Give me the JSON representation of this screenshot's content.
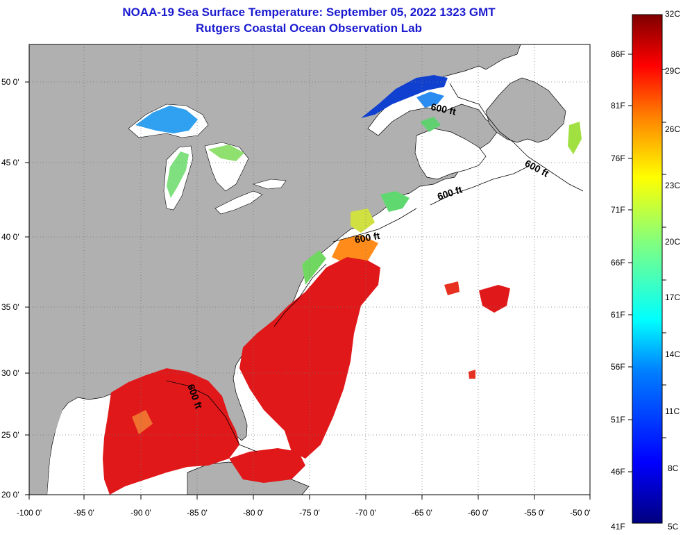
{
  "title": "NOAA-19 Sea Surface Temperature:  September 05, 2022 1323 GMT",
  "subtitle": "Rutgers Coastal Ocean Observation Lab",
  "colors": {
    "land": "#b0b0b0",
    "cloud_or_nodata": "#ffffff",
    "title_text": "#1a1ad0",
    "warm_water": "#e0181a"
  },
  "axes": {
    "lon_ticks": [
      "-100 0'",
      "-95 0'",
      "-90 0'",
      "-85 0'",
      "-80 0'",
      "-75 0'",
      "-70 0'",
      "-65 0'",
      "-60 0'",
      "-55 0'",
      "-50 0'"
    ],
    "lat_ticks": [
      "50 0'",
      "45 0'",
      "40 0'",
      "35 0'",
      "30 0'",
      "25 0'",
      "20 0'"
    ],
    "grid": "dotted"
  },
  "contours": [
    {
      "label": "600 ft"
    },
    {
      "label": "600 ft"
    },
    {
      "label": "600 ft"
    },
    {
      "label": "600 ft"
    },
    {
      "label": "600 ft"
    }
  ],
  "colorbar": {
    "celsius": [
      "32C",
      "29C",
      "26C",
      "23C",
      "20C",
      "17C",
      "14C",
      "11C",
      "8C",
      "5C"
    ],
    "fahrenheit": [
      "86F",
      "81F",
      "76F",
      "71F",
      "66F",
      "61F",
      "56F",
      "51F",
      "46F",
      "41F"
    ]
  }
}
